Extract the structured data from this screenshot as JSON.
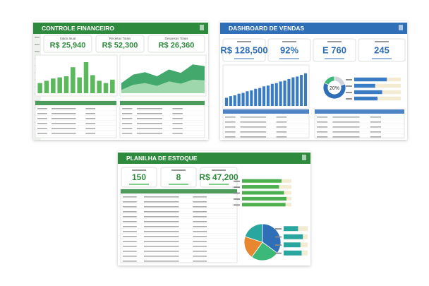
{
  "panels": [
    {
      "title": "CONTROLE FINANCEIRO",
      "kpis": [
        {
          "label": "Saldo atual",
          "value": "R$ 25,940"
        },
        {
          "label": "Receitas Totais",
          "value": "R$ 52,300"
        },
        {
          "label": "Despesas Totais",
          "value": "R$ 26,360"
        }
      ],
      "charts": [
        {
          "type": "bar",
          "values": [
            18,
            22,
            26,
            28,
            30,
            46,
            28,
            55,
            32,
            22,
            18,
            24
          ],
          "ylim": [
            0,
            60
          ],
          "color": "#5cb85c"
        },
        {
          "type": "area",
          "series": [
            {
              "color": "#2e9e5b",
              "values": [
                30,
                55,
                62,
                50,
                70,
                60,
                85,
                80
              ]
            },
            {
              "color": "#a8dcb4",
              "values": [
                10,
                25,
                30,
                22,
                35,
                28,
                40,
                38
              ]
            }
          ],
          "ylim": [
            0,
            100
          ]
        }
      ]
    },
    {
      "title": "DASHBOARD DE VENDAS",
      "kpis": [
        {
          "value": "R$ 128,500"
        },
        {
          "value": "92%"
        },
        {
          "value": "E 760"
        },
        {
          "value": "245"
        }
      ],
      "charts": [
        {
          "type": "bar",
          "values": [
            10,
            12,
            13,
            15,
            16,
            18,
            19,
            21,
            22,
            24,
            25,
            27,
            28,
            30,
            31,
            33,
            35,
            36,
            38,
            40
          ],
          "ylim": [
            0,
            45
          ],
          "color": "#3a7cc4"
        },
        {
          "type": "donut",
          "values": [
            20,
            62,
            18
          ],
          "value_labels": [
            "20%"
          ],
          "colors": [
            "#d0d4da",
            "#2f6fb8",
            "#3cb878"
          ]
        },
        {
          "type": "hbar",
          "values": [
            70,
            45,
            60,
            50
          ],
          "xlim": [
            0,
            100
          ],
          "color": "#3a7cc4"
        }
      ]
    },
    {
      "title": "PLANILHA DE ESTOQUE",
      "kpis": [
        {
          "value": "150"
        },
        {
          "value": "8"
        },
        {
          "value": "R$ 47,200"
        }
      ],
      "charts": [
        {
          "type": "hbar",
          "values": [
            80,
            75,
            85,
            90,
            88
          ],
          "xlim": [
            0,
            100
          ],
          "color": "#4caf50"
        },
        {
          "type": "pie",
          "values": [
            35,
            25,
            20,
            20
          ],
          "colors": [
            "#2f6fb8",
            "#3cb878",
            "#e8872f",
            "#2aa6a0"
          ]
        },
        {
          "type": "hbar",
          "values": [
            60,
            80,
            70,
            75
          ],
          "xlim": [
            0,
            100
          ],
          "color": "#2aa6a0"
        }
      ]
    }
  ]
}
